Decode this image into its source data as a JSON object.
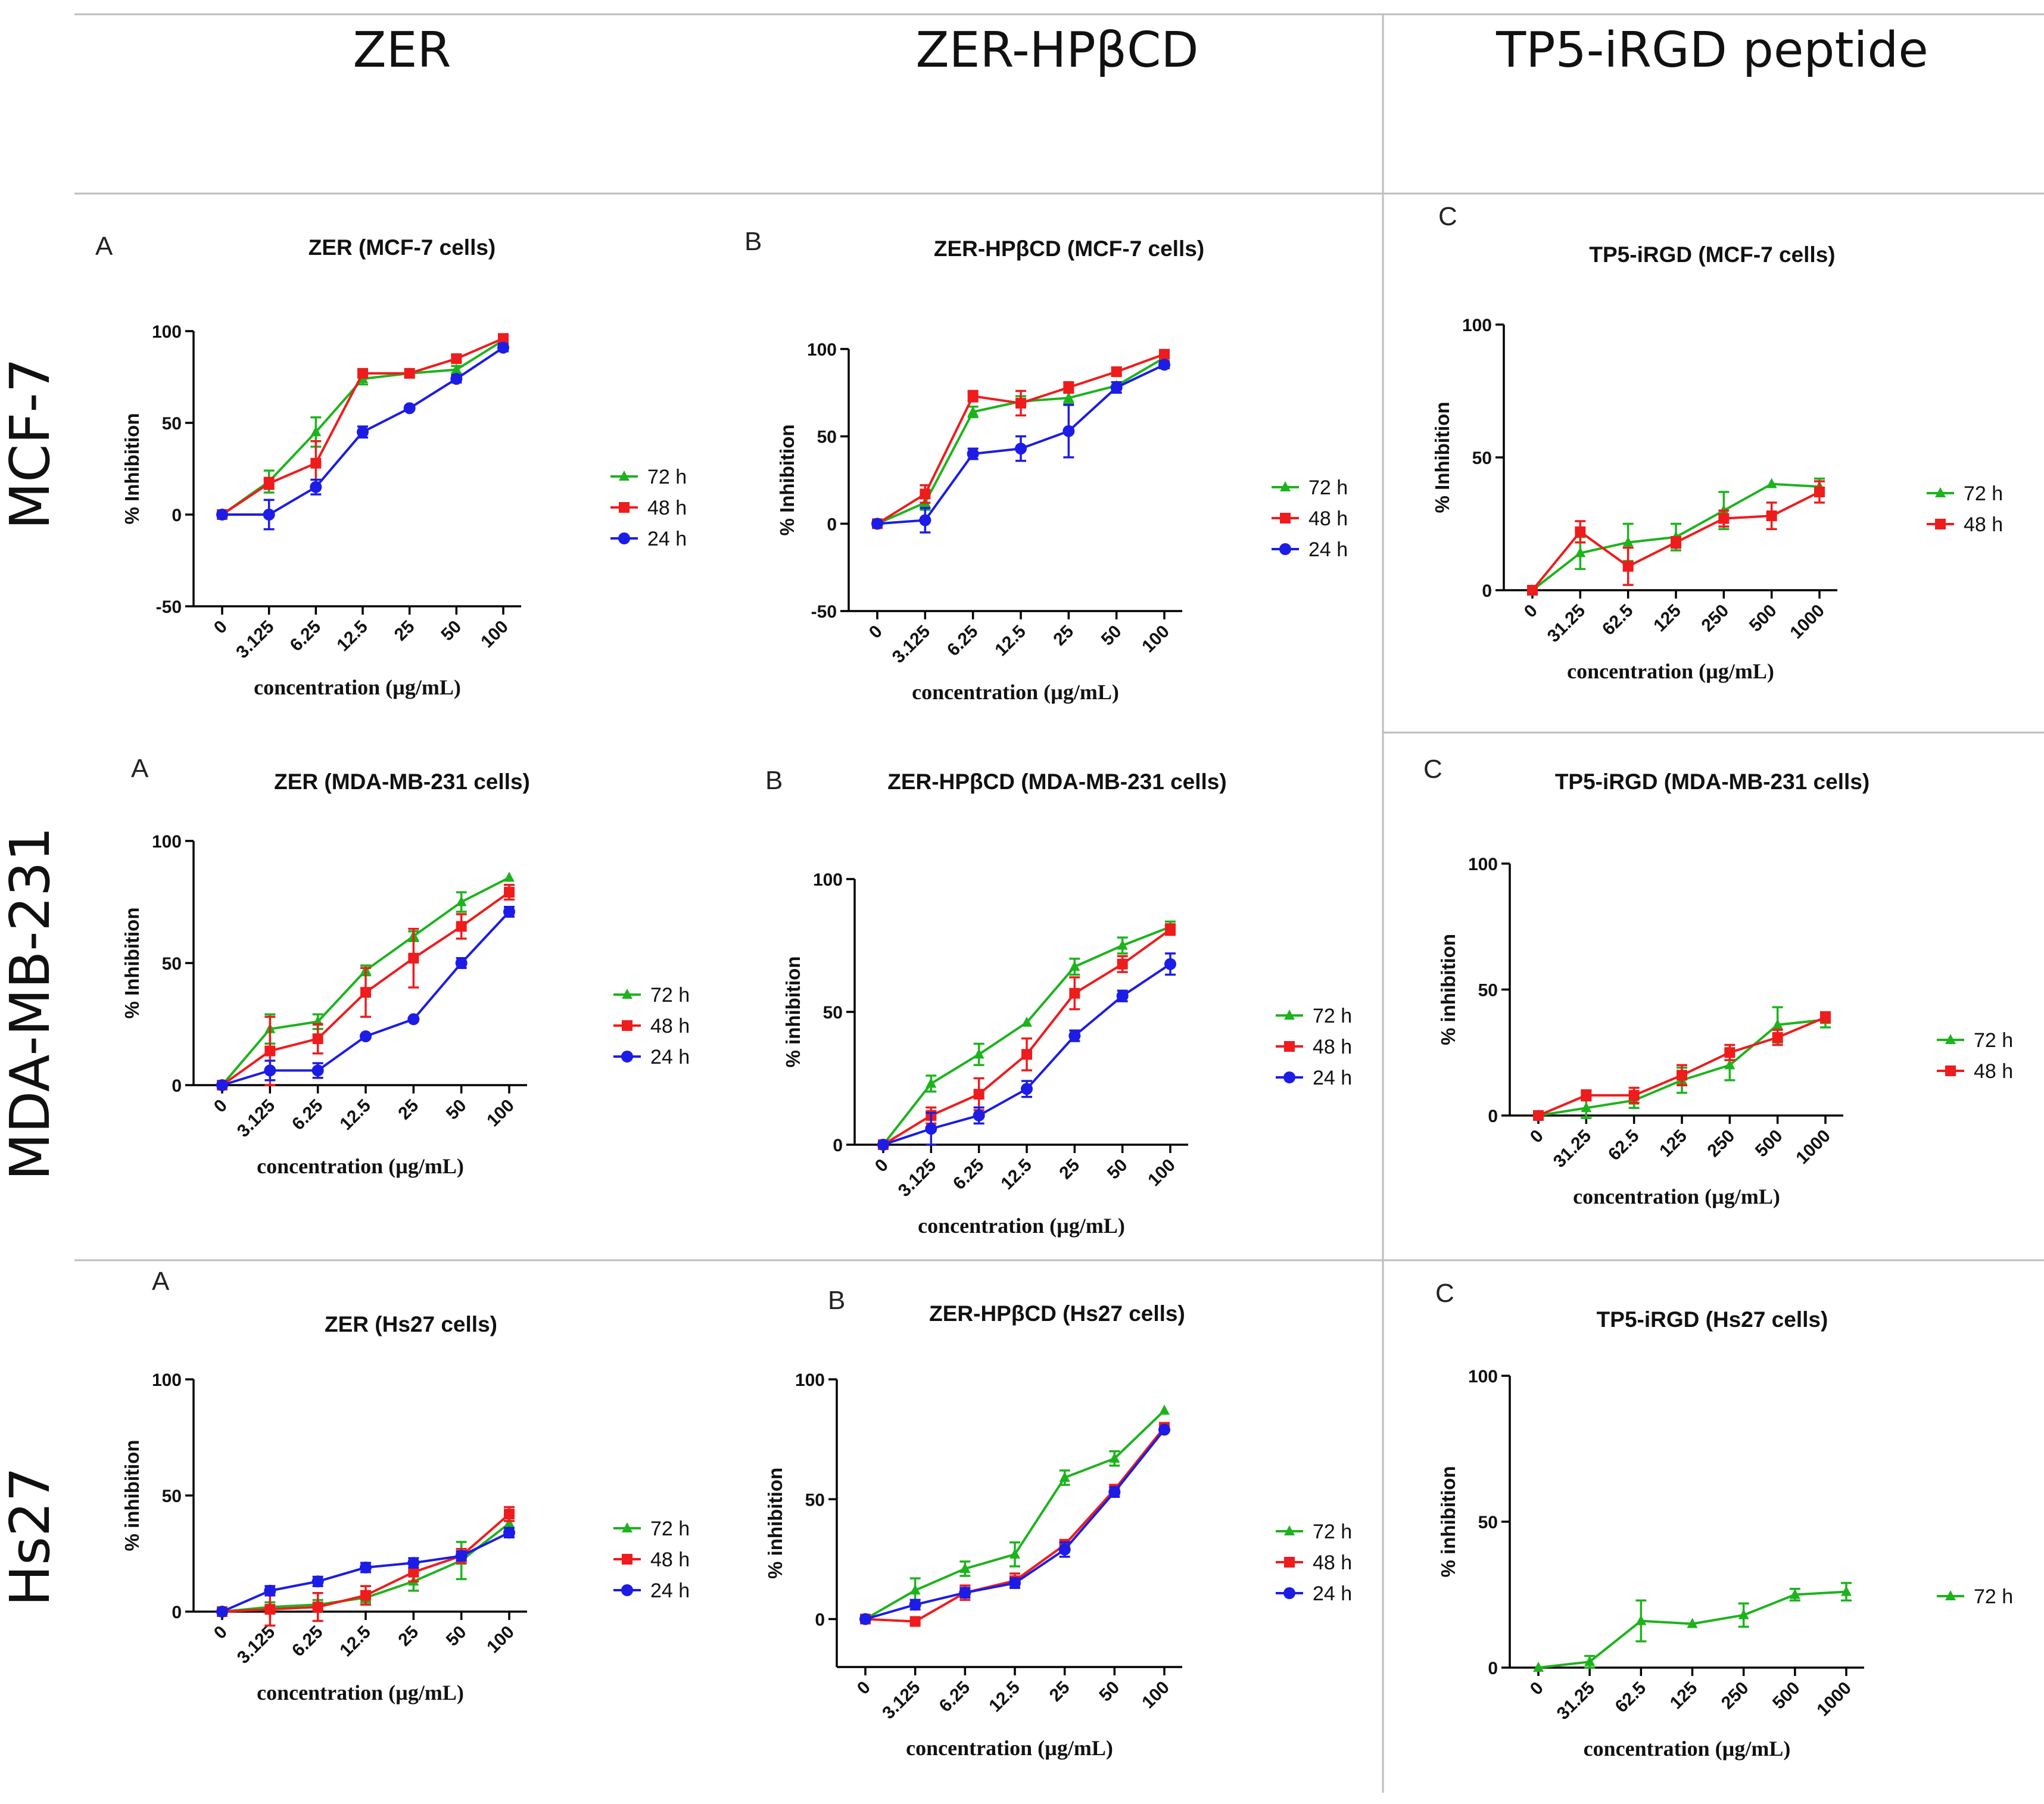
{
  "columns": [
    "ZER",
    "ZER-HPβCD",
    "TP5-iRGD peptide"
  ],
  "rows": [
    "MCF-7",
    "MDA-MB-231",
    "Hs27"
  ],
  "colors": {
    "72 h": "#1db31d",
    "48 h": "#ee1c1c",
    "24 h": "#1c1ce6"
  },
  "chart_data": [
    {
      "type": "line",
      "letter": "A",
      "title": "ZER (MCF-7 cells)",
      "categories": [
        "0",
        "3.125",
        "6.25",
        "12.5",
        "25",
        "50",
        "100"
      ],
      "ylim": [
        -50,
        100
      ],
      "yticks": [
        "-50",
        "0",
        "50",
        "100"
      ],
      "xlabel": "concentration (µg/mL)",
      "ylabel": "% Inhibition",
      "series": [
        {
          "name": "72 h",
          "values": [
            0,
            18,
            45,
            74,
            77,
            79,
            95
          ],
          "err": [
            1,
            6,
            8,
            3,
            2,
            2,
            2
          ]
        },
        {
          "name": "48 h",
          "values": [
            0,
            17,
            28,
            77,
            77,
            85,
            96
          ],
          "err": [
            1,
            3,
            12,
            2,
            1,
            2,
            1
          ]
        },
        {
          "name": "24 h",
          "values": [
            0,
            0,
            15,
            45,
            58,
            74,
            91
          ],
          "err": [
            1,
            8,
            4,
            3,
            1,
            2,
            2
          ]
        }
      ]
    },
    {
      "type": "line",
      "letter": "B",
      "title": "ZER-HPβCD  (MCF-7 cells)",
      "categories": [
        "0",
        "3.125",
        "6.25",
        "12.5",
        "25",
        "50",
        "100"
      ],
      "ylim": [
        -50,
        100
      ],
      "yticks": [
        "-50",
        "0",
        "50",
        "100"
      ],
      "xlabel": "concentration (µg/mL)",
      "ylabel": "% Inhibition",
      "series": [
        {
          "name": "72 h",
          "values": [
            0,
            12,
            64,
            70,
            72,
            79,
            95
          ],
          "err": [
            1,
            4,
            3,
            3,
            3,
            2,
            1
          ]
        },
        {
          "name": "48 h",
          "values": [
            0,
            17,
            73,
            69,
            78,
            87,
            97
          ],
          "err": [
            1,
            5,
            3,
            7,
            3,
            2,
            1
          ]
        },
        {
          "name": "24 h",
          "values": [
            0,
            2,
            40,
            43,
            53,
            78,
            91
          ],
          "err": [
            1,
            7,
            3,
            7,
            15,
            3,
            2
          ]
        }
      ]
    },
    {
      "type": "line",
      "letter": "C",
      "title": "TP5-iRGD (MCF-7 cells)",
      "categories": [
        "0",
        "31.25",
        "62.5",
        "125",
        "250",
        "500",
        "1000"
      ],
      "ylim": [
        0,
        100
      ],
      "yticks": [
        "0",
        "50",
        "100"
      ],
      "xlabel": "concentration (µg/mL)",
      "ylabel": "% Inhibition",
      "series": [
        {
          "name": "72 h",
          "values": [
            0,
            14,
            18,
            20,
            30,
            40,
            39
          ],
          "err": [
            1,
            6,
            7,
            5,
            7,
            1,
            3
          ]
        },
        {
          "name": "48 h",
          "values": [
            0,
            22,
            9,
            18,
            27,
            28,
            37
          ],
          "err": [
            1,
            4,
            7,
            2,
            3,
            5,
            4
          ]
        }
      ]
    },
    {
      "type": "line",
      "letter": "A",
      "title": "ZER (MDA-MB-231 cells)",
      "categories": [
        "0",
        "3.125",
        "6.25",
        "12.5",
        "25",
        "50",
        "100"
      ],
      "ylim": [
        0,
        100
      ],
      "yticks": [
        "0",
        "50",
        "100"
      ],
      "xlabel": "concentration (µg/mL)",
      "ylabel": "% Inhibition",
      "series": [
        {
          "name": "72 h",
          "values": [
            0,
            23,
            26,
            47,
            61,
            75,
            85
          ],
          "err": [
            1,
            6,
            3,
            2,
            2,
            4,
            1
          ]
        },
        {
          "name": "48 h",
          "values": [
            0,
            14,
            19,
            38,
            52,
            65,
            79
          ],
          "err": [
            1,
            14,
            6,
            10,
            12,
            5,
            3
          ]
        },
        {
          "name": "24 h",
          "values": [
            0,
            6,
            6,
            20,
            27,
            50,
            71
          ],
          "err": [
            1,
            4,
            3,
            1,
            1,
            2,
            2
          ]
        }
      ]
    },
    {
      "type": "line",
      "letter": "B",
      "title": "ZER-HPβCD  (MDA-MB-231 cells)",
      "categories": [
        "0",
        "3.125",
        "6.25",
        "12.5",
        "25",
        "50",
        "100"
      ],
      "ylim": [
        0,
        100
      ],
      "yticks": [
        "0",
        "50",
        "100"
      ],
      "xlabel": "concentration (µg/mL)",
      "ylabel": "% inhibition",
      "series": [
        {
          "name": "72 h",
          "values": [
            0,
            23,
            34,
            46,
            67,
            75,
            82
          ],
          "err": [
            1,
            3,
            4,
            1,
            3,
            3,
            2
          ]
        },
        {
          "name": "48 h",
          "values": [
            0,
            11,
            19,
            34,
            57,
            68,
            81
          ],
          "err": [
            1,
            3,
            6,
            6,
            6,
            3,
            2
          ]
        },
        {
          "name": "24 h",
          "values": [
            0,
            6,
            11,
            21,
            41,
            56,
            68
          ],
          "err": [
            1,
            6,
            3,
            3,
            2,
            2,
            4
          ]
        }
      ]
    },
    {
      "type": "line",
      "letter": "C",
      "title": "TP5-iRGD (MDA-MB-231 cells)",
      "categories": [
        "0",
        "31.25",
        "62.5",
        "125",
        "250",
        "500",
        "1000"
      ],
      "ylim": [
        0,
        100
      ],
      "yticks": [
        "0",
        "50",
        "100"
      ],
      "xlabel": "concentration (µg/mL)",
      "ylabel": "% inhibition",
      "series": [
        {
          "name": "72 h",
          "values": [
            0,
            3,
            6,
            14,
            20,
            36,
            38
          ],
          "err": [
            1,
            4,
            3,
            5,
            6,
            7,
            3
          ]
        },
        {
          "name": "48 h",
          "values": [
            0,
            8,
            8,
            16,
            25,
            31,
            39
          ],
          "err": [
            1,
            2,
            3,
            4,
            3,
            3,
            2
          ]
        }
      ]
    },
    {
      "type": "line",
      "letter": "A",
      "title": "ZER (Hs27 cells)",
      "categories": [
        "0",
        "3.125",
        "6.25",
        "12.5",
        "25",
        "50",
        "100"
      ],
      "ylim": [
        0,
        100
      ],
      "yticks": [
        "0",
        "50",
        "100"
      ],
      "xlabel": "concentration (µg/mL)",
      "ylabel": "% inhibition",
      "series": [
        {
          "name": "72 h",
          "values": [
            0,
            2,
            3,
            6,
            13,
            22,
            38
          ],
          "err": [
            1,
            2,
            2,
            2,
            4,
            8,
            4
          ]
        },
        {
          "name": "48 h",
          "values": [
            0,
            1,
            2,
            7,
            17,
            24,
            42
          ],
          "err": [
            1,
            7,
            6,
            4,
            4,
            3,
            3
          ]
        },
        {
          "name": "24 h",
          "values": [
            0,
            9,
            13,
            19,
            21,
            24,
            34
          ],
          "err": [
            1,
            2,
            2,
            2,
            2,
            2,
            2
          ]
        }
      ]
    },
    {
      "type": "line",
      "letter": "B",
      "title": "ZER-HPβCD  (Hs27 cells)",
      "categories": [
        "0",
        "3.125",
        "6.25",
        "12.5",
        "25",
        "50",
        "100"
      ],
      "ylim": [
        -20,
        100
      ],
      "yticks": [
        "0",
        "50",
        "100"
      ],
      "xlabel": "concentration (µg/mL)",
      "ylabel": "% inhibition",
      "series": [
        {
          "name": "72 h",
          "values": [
            0,
            12,
            21,
            27,
            59,
            67,
            87
          ],
          "err": [
            1,
            5,
            3,
            5,
            3,
            3,
            1
          ]
        },
        {
          "name": "48 h",
          "values": [
            0,
            -1,
            11,
            16,
            31,
            54,
            80
          ],
          "err": [
            1,
            1,
            3,
            3,
            2,
            2,
            1
          ]
        },
        {
          "name": "24 h",
          "values": [
            0,
            6,
            11,
            15,
            29,
            53,
            79
          ],
          "err": [
            1,
            2,
            2,
            2,
            3,
            2,
            1
          ]
        }
      ]
    },
    {
      "type": "line",
      "letter": "C",
      "title": "TP5-iRGD (Hs27 cells)",
      "categories": [
        "0",
        "31.25",
        "62.5",
        "125",
        "250",
        "500",
        "1000"
      ],
      "ylim": [
        0,
        100
      ],
      "yticks": [
        "0",
        "50",
        "100"
      ],
      "xlabel": "concentration (µg/mL)",
      "ylabel": "% inhibition",
      "series": [
        {
          "name": "72 h",
          "values": [
            0,
            2,
            16,
            15,
            18,
            25,
            26
          ],
          "err": [
            1,
            2,
            7,
            1,
            4,
            2,
            3
          ]
        }
      ]
    }
  ]
}
